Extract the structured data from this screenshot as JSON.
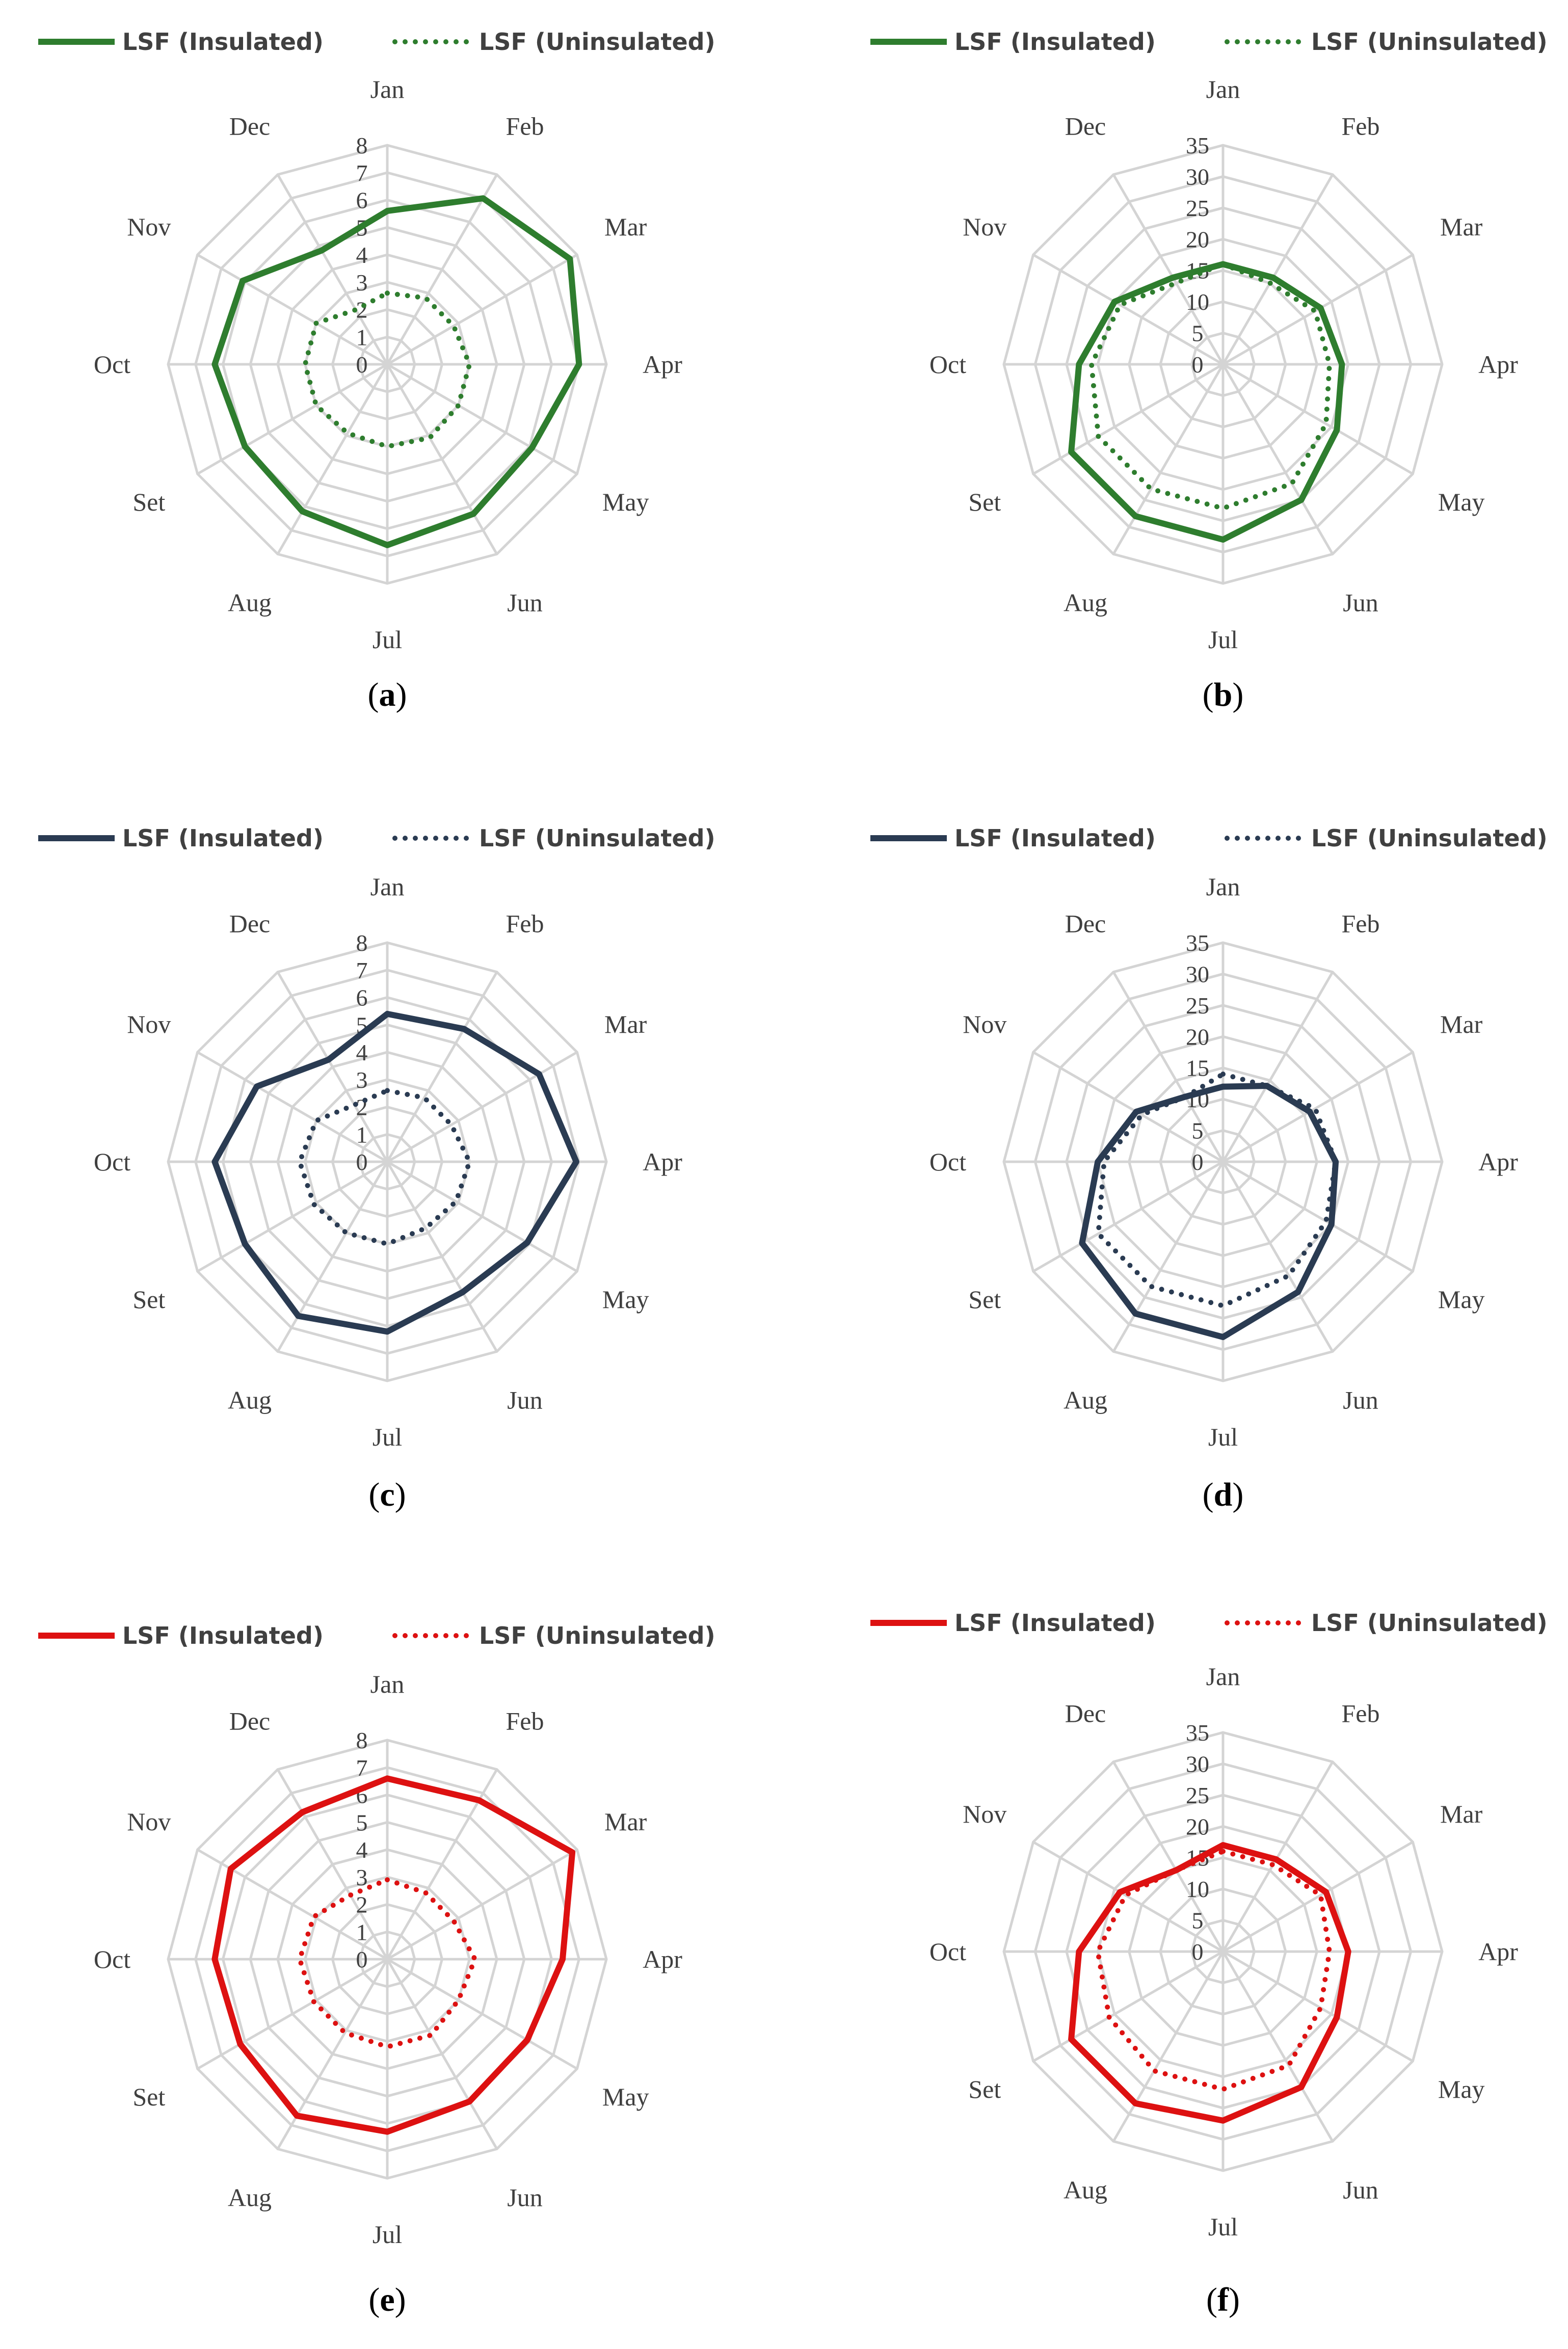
{
  "colors": {
    "green": "#2e7d2e",
    "navy": "#2a3b52",
    "red": "#dd1111",
    "grid": "#d4d4d4",
    "text": "#404040"
  },
  "chart_data": [
    {
      "type": "radar",
      "panel": "a",
      "color": "green",
      "categories": [
        "Jan",
        "Feb",
        "Mar",
        "Apr",
        "May",
        "Jun",
        "Jul",
        "Aug",
        "Set",
        "Oct",
        "Nov",
        "Dec"
      ],
      "ticks": [
        "0",
        "1",
        "2",
        "3",
        "4",
        "5",
        "6",
        "7",
        "8"
      ],
      "rmax": 8,
      "series": [
        {
          "name": "LSF (Insulated)",
          "style": "solid",
          "values": [
            5.6,
            7.0,
            7.7,
            7.0,
            6.1,
            6.3,
            6.6,
            6.2,
            6.0,
            6.3,
            6.1,
            4.8
          ]
        },
        {
          "name": "LSF (Uninsulated)",
          "style": "dotted",
          "values": [
            2.6,
            2.8,
            2.8,
            3.0,
            3.0,
            3.1,
            3.0,
            2.9,
            3.0,
            3.0,
            3.0,
            2.3
          ]
        }
      ]
    },
    {
      "type": "radar",
      "panel": "b",
      "color": "green",
      "categories": [
        "Jan",
        "Feb",
        "Mar",
        "Apr",
        "May",
        "Jun",
        "Jul",
        "Aug",
        "Set",
        "Oct",
        "Nov",
        "Dec"
      ],
      "ticks": [
        "0",
        "5",
        "10",
        "15",
        "20",
        "25",
        "30",
        "35"
      ],
      "rmax": 35,
      "series": [
        {
          "name": "LSF (Insulated)",
          "style": "solid",
          "values": [
            16,
            16,
            18,
            19,
            21,
            25,
            28,
            28,
            28,
            23,
            20,
            16
          ]
        },
        {
          "name": "LSF (Uninsulated)",
          "style": "dotted",
          "values": [
            16,
            15,
            17,
            17,
            19,
            22,
            23,
            23,
            23,
            21,
            19,
            15
          ]
        }
      ]
    },
    {
      "type": "radar",
      "panel": "c",
      "color": "navy",
      "categories": [
        "Jan",
        "Feb",
        "Mar",
        "Apr",
        "May",
        "Jun",
        "Jul",
        "Aug",
        "Set",
        "Oct",
        "Nov",
        "Dec"
      ],
      "ticks": [
        "0",
        "1",
        "2",
        "3",
        "4",
        "5",
        "6",
        "7",
        "8"
      ],
      "rmax": 8,
      "series": [
        {
          "name": "LSF (Insulated)",
          "style": "solid",
          "values": [
            5.4,
            5.6,
            6.4,
            6.9,
            5.9,
            5.5,
            6.2,
            6.5,
            6.0,
            6.3,
            5.5,
            4.3
          ]
        },
        {
          "name": "LSF (Uninsulated)",
          "style": "dotted",
          "values": [
            2.6,
            2.7,
            2.7,
            3.0,
            2.9,
            2.8,
            3.0,
            3.0,
            3.1,
            3.2,
            3.0,
            2.4
          ]
        }
      ]
    },
    {
      "type": "radar",
      "panel": "d",
      "color": "navy",
      "categories": [
        "Jan",
        "Feb",
        "Mar",
        "Apr",
        "May",
        "Jun",
        "Jul",
        "Aug",
        "Set",
        "Oct",
        "Nov",
        "Dec"
      ],
      "ticks": [
        "0",
        "5",
        "10",
        "15",
        "20",
        "25",
        "30",
        "35"
      ],
      "rmax": 35,
      "series": [
        {
          "name": "LSF (Insulated)",
          "style": "solid",
          "values": [
            12,
            14,
            16,
            18,
            20,
            24,
            28,
            28,
            26,
            20,
            16,
            12
          ]
        },
        {
          "name": "LSF (Uninsulated)",
          "style": "dotted",
          "values": [
            14,
            14,
            17,
            18,
            19,
            21,
            23,
            23,
            23,
            19,
            15,
            12
          ]
        }
      ]
    },
    {
      "type": "radar",
      "panel": "e",
      "color": "red",
      "categories": [
        "Jan",
        "Feb",
        "Mar",
        "Apr",
        "May",
        "Jun",
        "Jul",
        "Aug",
        "Set",
        "Oct",
        "Nov",
        "Dec"
      ],
      "ticks": [
        "0",
        "1",
        "2",
        "3",
        "4",
        "5",
        "6",
        "7",
        "8"
      ],
      "rmax": 8,
      "series": [
        {
          "name": "LSF (Insulated)",
          "style": "solid",
          "values": [
            6.6,
            6.7,
            7.8,
            6.4,
            5.9,
            6.0,
            6.3,
            6.6,
            6.2,
            6.3,
            6.6,
            6.2
          ]
        },
        {
          "name": "LSF (Uninsulated)",
          "style": "dotted",
          "values": [
            2.9,
            2.8,
            2.8,
            3.2,
            3.0,
            3.2,
            3.2,
            3.1,
            3.1,
            3.2,
            3.1,
            2.7
          ]
        }
      ]
    },
    {
      "type": "radar",
      "panel": "f",
      "color": "red",
      "categories": [
        "Jan",
        "Feb",
        "Mar",
        "Apr",
        "May",
        "Jun",
        "Jul",
        "Aug",
        "Set",
        "Oct",
        "Nov",
        "Dec"
      ],
      "ticks": [
        "0",
        "5",
        "10",
        "15",
        "20",
        "25",
        "30",
        "35"
      ],
      "rmax": 35,
      "series": [
        {
          "name": "LSF (Insulated)",
          "style": "solid",
          "values": [
            17,
            17,
            19,
            20,
            21,
            25,
            27,
            28,
            28,
            23,
            19,
            15
          ]
        },
        {
          "name": "LSF (Uninsulated)",
          "style": "dotted",
          "values": [
            16,
            16,
            18,
            17,
            18,
            21,
            22,
            22,
            21,
            20,
            18,
            15
          ]
        }
      ]
    }
  ]
}
